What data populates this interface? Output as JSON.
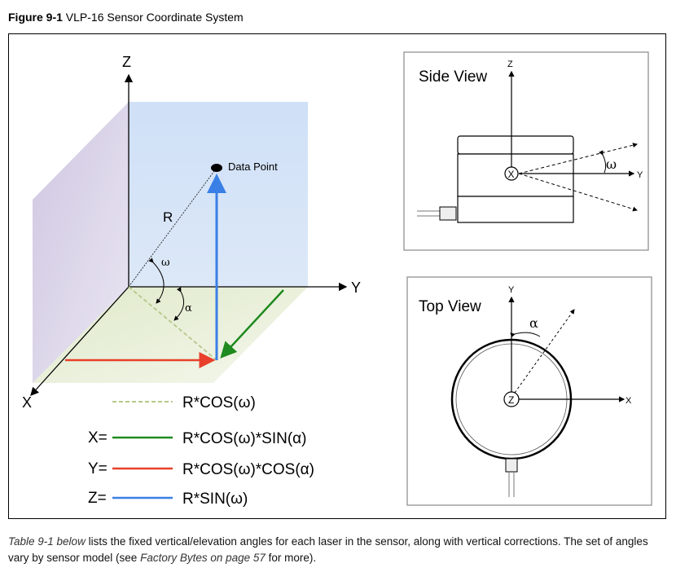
{
  "caption": {
    "label": "Figure 9-1",
    "title": "VLP-16 Sensor Coordinate System"
  },
  "main_diagram": {
    "axis_z": "Z",
    "axis_y": "Y",
    "axis_x": "X",
    "data_point": "Data Point",
    "r_label": "R",
    "omega": "ω",
    "alpha": "α",
    "legend": [
      {
        "prefix": "",
        "formula": "R*COS(ω)",
        "color": "#b5c88a",
        "dashed": true
      },
      {
        "prefix": "X=",
        "formula": "R*COS(ω)*SIN(α)",
        "color": "#1f8a1f",
        "dashed": false
      },
      {
        "prefix": "Y=",
        "formula": "R*COS(ω)*COS(α)",
        "color": "#e8402a",
        "dashed": false
      },
      {
        "prefix": "Z=",
        "formula": "R*SIN(ω)",
        "color": "#3a7fe6",
        "dashed": false
      }
    ]
  },
  "side_view": {
    "title": "Side View",
    "axis_z": "Z",
    "axis_y": "Y",
    "center": "X",
    "angle": "ω"
  },
  "top_view": {
    "title": "Top View",
    "axis_y": "Y",
    "axis_x": "X",
    "center": "Z",
    "angle": "α"
  },
  "body": {
    "ref1": "Table 9-1 below",
    "text1": " lists the fixed vertical/elevation angles for each laser in the sensor, along with vertical corrections. The set of angles vary by sensor model (see ",
    "ref2": "Factory Bytes on page 57",
    "text2": " for more)."
  }
}
